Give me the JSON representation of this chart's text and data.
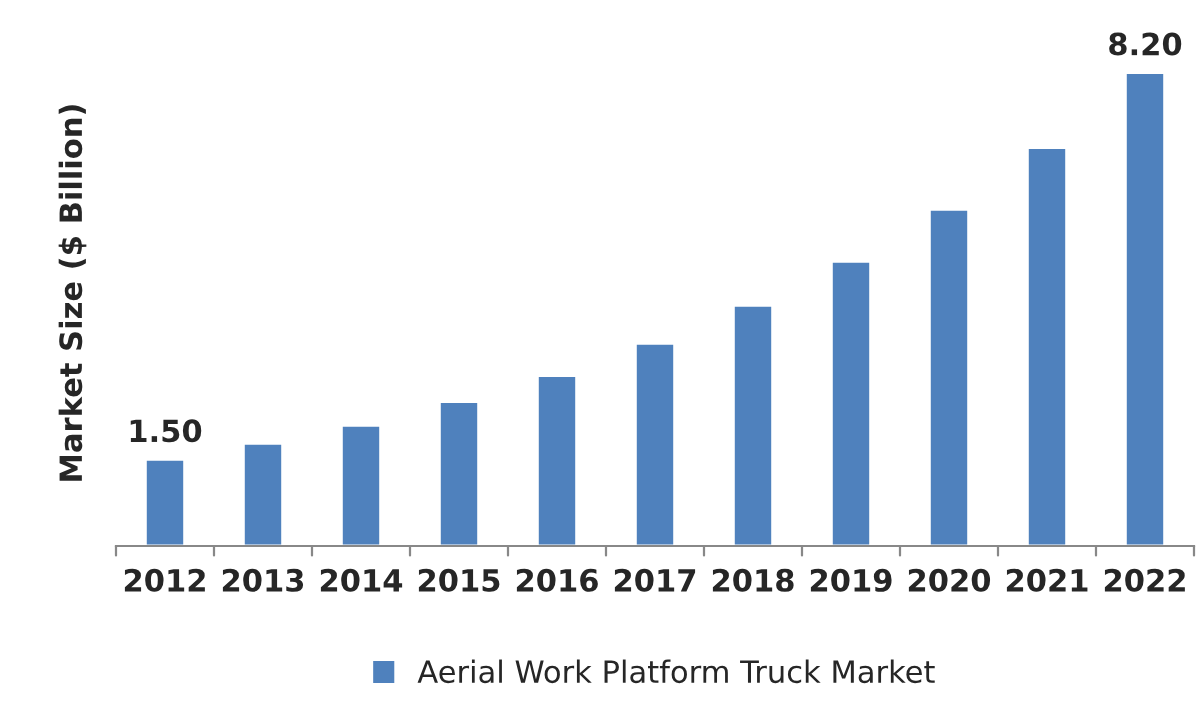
{
  "chart_data": {
    "type": "bar",
    "ylabel": "Market Size ($ Billion)",
    "categories": [
      "2012",
      "2013",
      "2014",
      "2015",
      "2016",
      "2017",
      "2018",
      "2019",
      "2020",
      "2021",
      "2022"
    ],
    "series": [
      {
        "name": "Aerial Work Platform Truck Market",
        "color": "#4f81bd",
        "values": [
          1.5,
          1.78,
          2.09,
          2.5,
          2.95,
          3.51,
          4.17,
          4.93,
          5.83,
          6.9,
          8.2
        ],
        "value_labels": [
          "1.50",
          null,
          null,
          null,
          null,
          null,
          null,
          null,
          null,
          null,
          "8.20"
        ]
      }
    ],
    "legend": "bottom",
    "grid": false
  }
}
